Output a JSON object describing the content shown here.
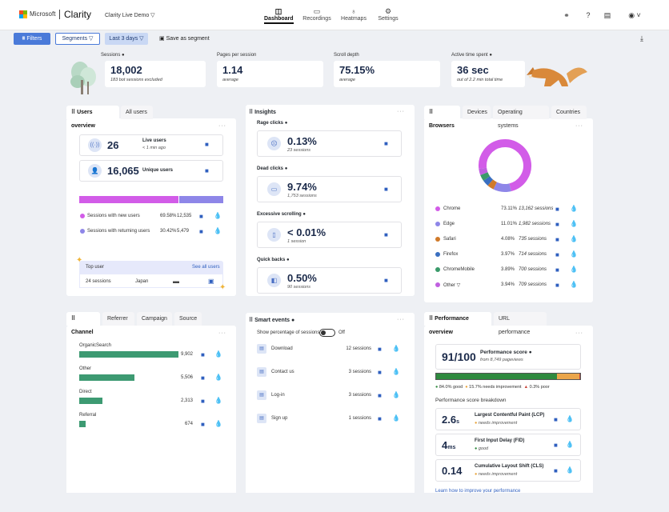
{
  "header": {
    "brand": "Microsoft",
    "app_name": "Clarity",
    "project": "Clarity Live Demo ▽",
    "nav": [
      {
        "label": "Dashboard",
        "icon": "dashboard-icon"
      },
      {
        "label": "Recordings",
        "icon": "recordings-icon"
      },
      {
        "label": "Heatmaps",
        "icon": "heatmaps-icon"
      },
      {
        "label": "Settings",
        "icon": "settings-icon"
      }
    ],
    "colors": {
      "ms_red": "#f25022",
      "ms_green": "#7fba00",
      "ms_blue": "#00a4ef",
      "ms_yellow": "#ffb900"
    }
  },
  "toolbar": {
    "filters": "Filters",
    "segments": "Segments ▽",
    "date": "Last 3 days ▽",
    "save_segment": "Save as segment"
  },
  "metrics": {
    "sessions": {
      "label": "Sessions",
      "value": "18,002",
      "sub": "183 bot sessions excluded"
    },
    "pages": {
      "label": "Pages per session",
      "value": "1.14",
      "sub": "average"
    },
    "scroll": {
      "label": "Scroll depth",
      "value": "75.15%",
      "sub": "average"
    },
    "time": {
      "label": "Active time spent",
      "value": "36 sec",
      "sub": "out of 2.2 min total time"
    }
  },
  "users": {
    "tabs": [
      "Users overview",
      "All users"
    ],
    "live_value": "26",
    "live_label": "Live users",
    "live_sub": "< 1 min ago",
    "unique_value": "16,065",
    "unique_label": "Unique users",
    "new_pct": 69.58,
    "rows": [
      {
        "label": "Sessions with new users",
        "pct": "69.58%",
        "count": "12,535",
        "color": "#d25ce8"
      },
      {
        "label": "Sessions with returning users",
        "pct": "30.42%",
        "count": "5,479",
        "color": "#8e86e8"
      }
    ],
    "top_user_label": "Top user",
    "see_all": "See all users",
    "top_sessions": "24 sessions",
    "top_country": "Japan"
  },
  "insights": {
    "title": "Insights",
    "items": [
      {
        "label": "Rage clicks",
        "value": "0.13%",
        "sub": "23 sessions",
        "icon": "rage-click-icon"
      },
      {
        "label": "Dead clicks",
        "value": "9.74%",
        "sub": "1,753 sessions",
        "icon": "dead-click-icon"
      },
      {
        "label": "Excessive scrolling",
        "value": "< 0.01%",
        "sub": "1 session",
        "icon": "scroll-icon"
      },
      {
        "label": "Quick backs",
        "value": "0.50%",
        "sub": "90 sessions",
        "icon": "quick-back-icon"
      }
    ]
  },
  "browsers": {
    "tabs": [
      "Browsers",
      "Devices",
      "Operating systems",
      "Countries"
    ],
    "items": [
      {
        "name": "Chrome",
        "pct": "73.11%",
        "sessions": "13,162 sessions",
        "value": 73.11,
        "color": "#d25ce8"
      },
      {
        "name": "Edge",
        "pct": "11.01%",
        "sessions": "1,982 sessions",
        "value": 11.01,
        "color": "#8e86e8"
      },
      {
        "name": "Safari",
        "pct": "4.08%",
        "sessions": "735 sessions",
        "value": 4.08,
        "color": "#d07a2a"
      },
      {
        "name": "Firefox",
        "pct": "3.97%",
        "sessions": "714 sessions",
        "value": 3.97,
        "color": "#3a6fc0"
      },
      {
        "name": "ChromeMobile",
        "pct": "3.89%",
        "sessions": "700 sessions",
        "value": 3.89,
        "color": "#3a9a6a"
      },
      {
        "name": "Other ▽",
        "pct": "3.94%",
        "sessions": "709 sessions",
        "value": 3.94,
        "color": "#c060e0"
      }
    ]
  },
  "channel": {
    "tabs": [
      "Channel",
      "Referrer",
      "Campaign",
      "Source"
    ],
    "max": 9902,
    "items": [
      {
        "name": "OrganicSearch",
        "value": 9902,
        "count": "9,902"
      },
      {
        "name": "Other",
        "value": 5506,
        "count": "5,506"
      },
      {
        "name": "Direct",
        "value": 2313,
        "count": "2,313"
      },
      {
        "name": "Referral",
        "value": 674,
        "count": "674"
      }
    ],
    "color": "#3d9a72"
  },
  "smart": {
    "title": "Smart events",
    "toggle_label": "Show percentage of sessions",
    "toggle_state": "Off",
    "items": [
      {
        "name": "Download",
        "count": "12 sessions",
        "icon": "download-icon"
      },
      {
        "name": "Contact us",
        "count": "3 sessions",
        "icon": "contact-icon"
      },
      {
        "name": "Log-in",
        "count": "3 sessions",
        "icon": "login-icon"
      },
      {
        "name": "Sign up",
        "count": "1 sessions",
        "icon": "signup-icon"
      }
    ]
  },
  "performance": {
    "tabs": [
      "Performance overview",
      "URL performance"
    ],
    "score": "91/100",
    "score_label": "Performance score",
    "score_sub": "from 8,749 pageviews",
    "good_pct": 84.0,
    "improve_pct": 15.7,
    "poor_pct": 0.3,
    "legend": [
      "84.0% good",
      "15.7% needs improvement",
      "0.3% poor"
    ],
    "breakdown_title": "Performance score breakdown",
    "metrics": [
      {
        "value": "2.6",
        "unit": "s",
        "label": "Largest Contentful Paint (LCP)",
        "status": "needs improvement",
        "color": "#e8a33a"
      },
      {
        "value": "4",
        "unit": "ms",
        "label": "First Input Delay (FID)",
        "status": "good",
        "color": "#2f8a3e"
      },
      {
        "value": "0.14",
        "unit": "",
        "label": "Cumulative Layout Shift (CLS)",
        "status": "needs improvement",
        "color": "#e8a33a"
      }
    ],
    "learn_more": "Learn how to improve your performance"
  }
}
